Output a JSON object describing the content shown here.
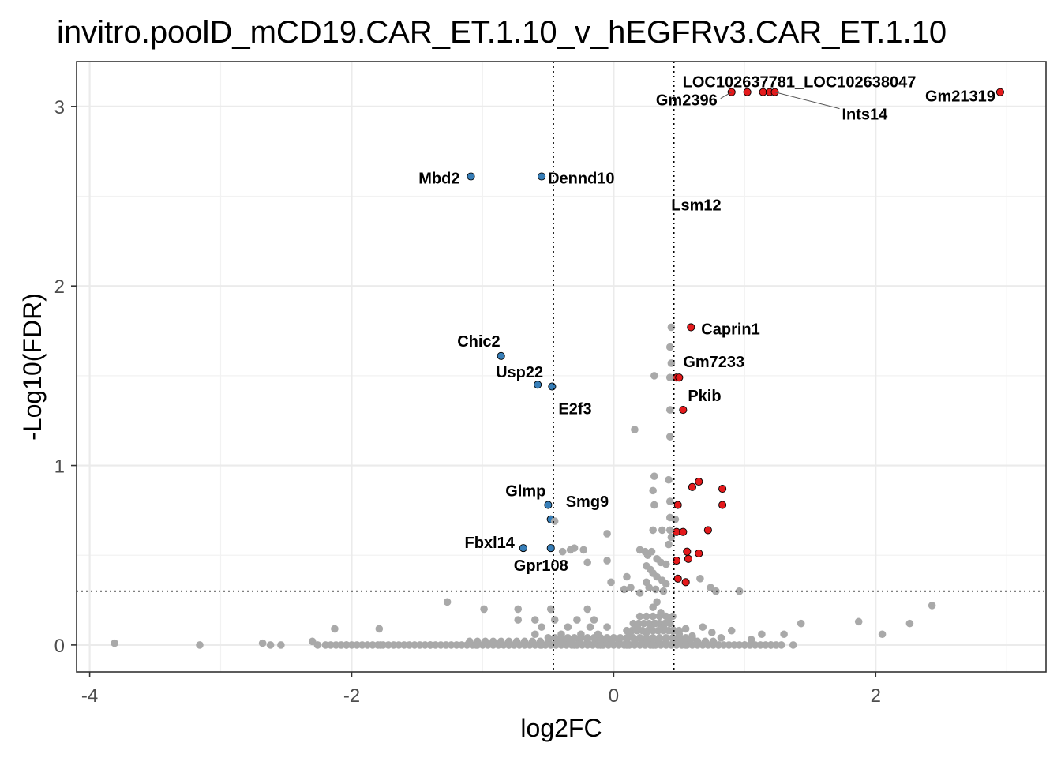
{
  "chart_data": {
    "type": "scatter",
    "title": "invitro.poolD_mCD19.CAR_ET.1.10_v_hEGFRv3.CAR_ET.1.10",
    "xlabel": "log2FC",
    "ylabel": "-Log10(FDR)",
    "xlim": [
      -4.1,
      3.3
    ],
    "ylim": [
      -0.15,
      3.25
    ],
    "x_ticks": [
      -4,
      -2,
      0,
      2
    ],
    "x_tick_labels": [
      "-4",
      "-2",
      "0",
      "2"
    ],
    "y_ticks": [
      0,
      1,
      2,
      3
    ],
    "y_tick_labels": [
      "0",
      "1",
      "2",
      "3"
    ],
    "grid": true,
    "thresholds": {
      "log2fc": [
        -0.46,
        0.46
      ],
      "neg_log10_fdr": 0.3
    },
    "colors": {
      "up": "#e41a1c",
      "down": "#377eb8",
      "ns": "#a9a9a9",
      "outline": "#000000"
    },
    "series": [
      {
        "name": "up",
        "points": [
          [
            0.9,
            3.08
          ],
          [
            1.02,
            3.08
          ],
          [
            1.14,
            3.08
          ],
          [
            1.19,
            3.08
          ],
          [
            1.23,
            3.08
          ],
          [
            2.95,
            3.08
          ],
          [
            0.59,
            1.77
          ],
          [
            0.48,
            1.49
          ],
          [
            0.5,
            1.49
          ],
          [
            0.53,
            1.31
          ],
          [
            0.65,
            0.91
          ],
          [
            0.6,
            0.88
          ],
          [
            0.83,
            0.87
          ],
          [
            0.83,
            0.78
          ],
          [
            0.49,
            0.78
          ],
          [
            0.72,
            0.64
          ],
          [
            0.48,
            0.63
          ],
          [
            0.53,
            0.63
          ],
          [
            0.56,
            0.52
          ],
          [
            0.65,
            0.51
          ],
          [
            0.57,
            0.48
          ],
          [
            0.48,
            0.47
          ],
          [
            0.49,
            0.37
          ],
          [
            0.55,
            0.35
          ]
        ]
      },
      {
        "name": "down",
        "points": [
          [
            -1.09,
            2.61
          ],
          [
            -0.55,
            2.61
          ],
          [
            -0.86,
            1.61
          ],
          [
            -0.58,
            1.45
          ],
          [
            -0.47,
            1.44
          ],
          [
            -0.5,
            0.78
          ],
          [
            -0.48,
            0.7
          ],
          [
            -0.69,
            0.54
          ],
          [
            -0.48,
            0.54
          ]
        ]
      },
      {
        "name": "ns",
        "points": [
          [
            0.44,
            1.77
          ],
          [
            0.43,
            1.66
          ],
          [
            0.44,
            1.57
          ],
          [
            0.31,
            1.5
          ],
          [
            0.43,
            1.49
          ],
          [
            0.43,
            1.31
          ],
          [
            0.16,
            1.2
          ],
          [
            0.43,
            1.16
          ],
          [
            0.31,
            0.94
          ],
          [
            0.42,
            0.92
          ],
          [
            0.3,
            0.86
          ],
          [
            0.43,
            0.8
          ],
          [
            0.31,
            0.78
          ],
          [
            0.43,
            0.71
          ],
          [
            0.47,
            0.7
          ],
          [
            0.3,
            0.64
          ],
          [
            0.37,
            0.64
          ],
          [
            0.43,
            0.64
          ],
          [
            0.44,
            0.6
          ],
          [
            0.42,
            0.56
          ],
          [
            -0.45,
            0.69
          ],
          [
            -0.3,
            0.54
          ],
          [
            -0.33,
            0.53
          ],
          [
            -0.23,
            0.53
          ],
          [
            -0.39,
            0.52
          ],
          [
            -0.2,
            0.46
          ],
          [
            -0.05,
            0.47
          ],
          [
            -0.05,
            0.62
          ],
          [
            0.2,
            0.53
          ],
          [
            0.24,
            0.52
          ],
          [
            0.29,
            0.52
          ],
          [
            0.26,
            0.5
          ],
          [
            0.33,
            0.48
          ],
          [
            0.36,
            0.46
          ],
          [
            0.4,
            0.45
          ],
          [
            0.25,
            0.44
          ],
          [
            0.28,
            0.42
          ],
          [
            0.3,
            0.4
          ],
          [
            0.33,
            0.38
          ],
          [
            0.37,
            0.36
          ],
          [
            0.4,
            0.34
          ],
          [
            0.25,
            0.35
          ],
          [
            0.1,
            0.38
          ],
          [
            -0.02,
            0.35
          ],
          [
            0.08,
            0.31
          ],
          [
            0.13,
            0.32
          ],
          [
            0.2,
            0.29
          ],
          [
            0.27,
            0.32
          ],
          [
            0.32,
            0.31
          ],
          [
            0.38,
            0.3
          ],
          [
            0.66,
            0.37
          ],
          [
            0.74,
            0.32
          ],
          [
            0.78,
            0.3
          ],
          [
            0.96,
            0.3
          ],
          [
            0.33,
            0.24
          ],
          [
            0.3,
            0.21
          ],
          [
            0.36,
            0.18
          ],
          [
            0.42,
            0.15
          ],
          [
            0.32,
            0.12
          ],
          [
            0.28,
            0.1
          ],
          [
            0.38,
            0.1
          ],
          [
            0.25,
            0.07
          ],
          [
            0.45,
            0.08
          ],
          [
            0.5,
            0.06
          ],
          [
            -1.27,
            0.24
          ],
          [
            -0.99,
            0.2
          ],
          [
            -0.73,
            0.2
          ],
          [
            -0.48,
            0.2
          ],
          [
            -0.2,
            0.2
          ],
          [
            -0.73,
            0.14
          ],
          [
            -0.6,
            0.14
          ],
          [
            -0.45,
            0.14
          ],
          [
            -0.28,
            0.14
          ],
          [
            -0.15,
            0.14
          ],
          [
            -0.55,
            0.1
          ],
          [
            -0.35,
            0.1
          ],
          [
            -0.18,
            0.1
          ],
          [
            -0.05,
            0.1
          ],
          [
            -0.6,
            0.06
          ],
          [
            -0.4,
            0.06
          ],
          [
            -0.25,
            0.06
          ],
          [
            -0.12,
            0.06
          ],
          [
            -2.13,
            0.09
          ],
          [
            -1.79,
            0.09
          ],
          [
            -2.3,
            0.02
          ],
          [
            0.12,
            0.07
          ],
          [
            0.18,
            0.1
          ],
          [
            0.55,
            0.09
          ],
          [
            0.6,
            0.05
          ],
          [
            0.68,
            0.1
          ],
          [
            0.75,
            0.07
          ],
          [
            0.82,
            0.04
          ],
          [
            0.9,
            0.08
          ],
          [
            1.05,
            0.03
          ],
          [
            1.13,
            0.06
          ],
          [
            1.3,
            0.06
          ],
          [
            1.43,
            0.12
          ],
          [
            1.87,
            0.13
          ],
          [
            2.05,
            0.06
          ],
          [
            2.26,
            0.12
          ],
          [
            2.43,
            0.22
          ],
          [
            -3.81,
            0.01
          ],
          [
            -3.16,
            0.0
          ],
          [
            -2.68,
            0.01
          ],
          [
            -2.62,
            0.0
          ],
          [
            -2.54,
            0.0
          ],
          [
            -2.26,
            0.0
          ],
          [
            -2.04,
            0.0
          ],
          [
            -1.78,
            0.0
          ],
          [
            -1.4,
            0.0
          ],
          [
            -1.05,
            0.0
          ],
          [
            -0.8,
            0.0
          ],
          [
            -0.55,
            0.0
          ],
          [
            -0.3,
            0.0
          ],
          [
            -0.1,
            0.0
          ],
          [
            0.1,
            0.0
          ],
          [
            0.3,
            0.0
          ],
          [
            0.55,
            0.0
          ],
          [
            0.8,
            0.0
          ],
          [
            1.0,
            0.0
          ],
          [
            1.2,
            0.0
          ],
          [
            1.37,
            0.0
          ]
        ]
      }
    ],
    "zero_band": [
      {
        "from": -2.2,
        "to": 1.3,
        "step": 0.04,
        "y": 0.0
      },
      {
        "from": -1.1,
        "to": 0.8,
        "step": 0.06,
        "y": 0.02
      },
      {
        "from": -0.5,
        "to": 0.6,
        "step": 0.05,
        "y": 0.04
      },
      {
        "from": 0.1,
        "to": 0.5,
        "step": 0.04,
        "y": 0.08
      },
      {
        "from": 0.15,
        "to": 0.45,
        "step": 0.04,
        "y": 0.12
      },
      {
        "from": 0.2,
        "to": 0.45,
        "step": 0.05,
        "y": 0.16
      }
    ],
    "annotations": [
      {
        "text": "LOC102637781_LOC102638047",
        "x": 1.02,
        "y": 3.08,
        "anchor": "start"
      },
      {
        "text": "Gm2396",
        "x": 0.9,
        "y": 3.08,
        "anchor": "end"
      },
      {
        "text": "Ints14",
        "x": 1.23,
        "y": 3.08,
        "anchor": "start"
      },
      {
        "text": "Gm21319",
        "x": 2.95,
        "y": 3.08,
        "anchor": "end"
      },
      {
        "text": "Mbd2",
        "x": -1.09,
        "y": 2.61,
        "anchor": "end"
      },
      {
        "text": "Dennd10",
        "x": -0.55,
        "y": 2.61,
        "anchor": "start"
      },
      {
        "text": "Lsm12",
        "x": 0.63,
        "y": 2.46,
        "anchor": "middle"
      },
      {
        "text": "Caprin1",
        "x": 0.59,
        "y": 1.77,
        "anchor": "start"
      },
      {
        "text": "Chic2",
        "x": -0.86,
        "y": 1.61,
        "anchor": "end"
      },
      {
        "text": "Gm7233",
        "x": 0.5,
        "y": 1.49,
        "anchor": "start"
      },
      {
        "text": "Usp22",
        "x": -0.58,
        "y": 1.45,
        "anchor": "end"
      },
      {
        "text": "Pkib",
        "x": 0.53,
        "y": 1.31,
        "anchor": "start"
      },
      {
        "text": "E2f3",
        "x": -0.47,
        "y": 1.44,
        "anchor": "start"
      },
      {
        "text": "Glmp",
        "x": -0.5,
        "y": 0.78,
        "anchor": "end"
      },
      {
        "text": "Smg9",
        "x": -0.48,
        "y": 0.7,
        "anchor": "start"
      },
      {
        "text": "Fbxl14",
        "x": -0.69,
        "y": 0.54,
        "anchor": "end"
      },
      {
        "text": "Gpr108",
        "x": -0.48,
        "y": 0.54,
        "anchor": "end"
      }
    ]
  }
}
